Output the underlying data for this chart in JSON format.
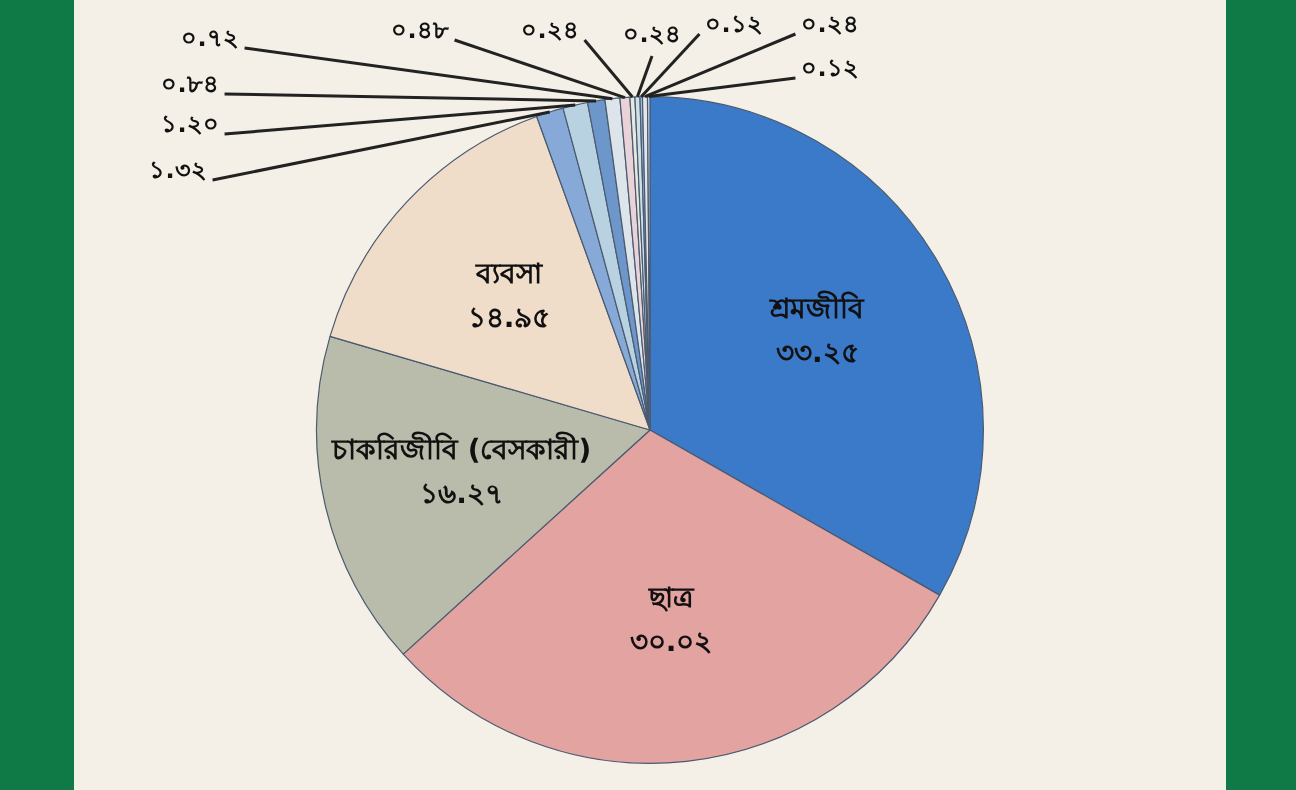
{
  "chart_data": {
    "type": "pie",
    "categories": [
      "শ্রমজীবি",
      "ছাত্র",
      "চাকরিজীবি (বেসকারী)",
      "ব্যবসা",
      null,
      null,
      null,
      null,
      null,
      null,
      null,
      null,
      null,
      null
    ],
    "values": [
      33.25,
      30.02,
      16.27,
      14.95,
      1.32,
      1.2,
      0.84,
      0.72,
      0.48,
      0.24,
      0.24,
      0.12,
      0.24,
      0.12
    ],
    "value_labels": [
      "৩৩.২৫",
      "৩০.০২",
      "১৬.২৭",
      "১৪.৯৫",
      "১.৩২",
      "১.২০",
      "০.৮৪",
      "০.৭২",
      "০.৪৮",
      "০.২৪",
      "০.২৪",
      "০.১২",
      "০.২৪",
      "০.১২"
    ],
    "colors": [
      "#3b7ac9",
      "#e3a3a0",
      "#b9bcaa",
      "#f0ddc9",
      "#86a9d8",
      "#b9d2e2",
      "#6d97cb",
      "#dde5ea",
      "#e9d2d8",
      "#e6e9de",
      "#cfe0e6",
      "#9db9dd",
      "#e3e6ea",
      "#c7d6e8"
    ],
    "legend": false
  }
}
